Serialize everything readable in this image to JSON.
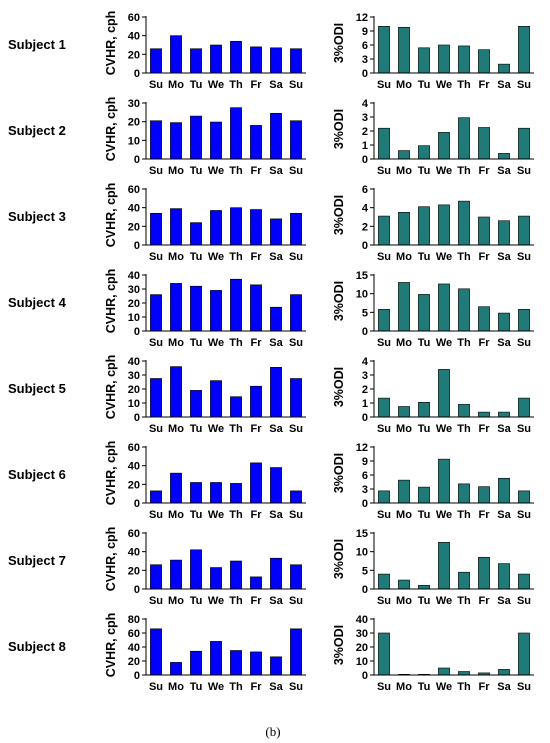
{
  "caption": "(b)",
  "colors": {
    "cvhr_bar": "#0000ff",
    "odi_bar": "#1f7a78",
    "bar_edge": "#000000",
    "axis": "#000000"
  },
  "chart_data": [
    {
      "type": "bar",
      "panel": "cvhr",
      "subject": "Subject 1",
      "ylabel": "CVHR, cph",
      "categories": [
        "Su",
        "Mo",
        "Tu",
        "We",
        "Th",
        "Fr",
        "Sa",
        "Su"
      ],
      "values": [
        26,
        40,
        26,
        30,
        34,
        28,
        27,
        26
      ],
      "ylim": [
        0,
        60
      ],
      "yticks": [
        0,
        20,
        40,
        60
      ],
      "grid": false
    },
    {
      "type": "bar",
      "panel": "odi",
      "subject": "Subject 1",
      "ylabel": "3%ODI",
      "categories": [
        "Su",
        "Mo",
        "Tu",
        "We",
        "Th",
        "Fr",
        "Sa",
        "Su"
      ],
      "values": [
        10,
        9.8,
        5.4,
        6,
        5.8,
        5,
        1.9,
        10
      ],
      "ylim": [
        0,
        12
      ],
      "yticks": [
        0,
        3,
        6,
        9,
        12
      ],
      "grid": false
    },
    {
      "type": "bar",
      "panel": "cvhr",
      "subject": "Subject 2",
      "ylabel": "CVHR, cph",
      "categories": [
        "Su",
        "Mo",
        "Tu",
        "We",
        "Th",
        "Fr",
        "Sa",
        "Su"
      ],
      "values": [
        20.5,
        19.5,
        23,
        19.8,
        27.5,
        18,
        24.5,
        20.5
      ],
      "ylim": [
        0,
        30
      ],
      "yticks": [
        0,
        10,
        20,
        30
      ],
      "grid": false
    },
    {
      "type": "bar",
      "panel": "odi",
      "subject": "Subject 2",
      "ylabel": "3%ODI",
      "categories": [
        "Su",
        "Mo",
        "Tu",
        "We",
        "Th",
        "Fr",
        "Sa",
        "Su"
      ],
      "values": [
        2.2,
        0.6,
        0.95,
        1.9,
        2.95,
        2.25,
        0.4,
        2.2
      ],
      "ylim": [
        0,
        4
      ],
      "yticks": [
        0,
        1,
        2,
        3,
        4
      ],
      "grid": false
    },
    {
      "type": "bar",
      "panel": "cvhr",
      "subject": "Subject 3",
      "ylabel": "CVHR, cph",
      "categories": [
        "Su",
        "Mo",
        "Tu",
        "We",
        "Th",
        "Fr",
        "Sa",
        "Su"
      ],
      "values": [
        34,
        39,
        24,
        37,
        40,
        38,
        28,
        34
      ],
      "ylim": [
        0,
        60
      ],
      "yticks": [
        0,
        20,
        40,
        60
      ],
      "grid": false
    },
    {
      "type": "bar",
      "panel": "odi",
      "subject": "Subject 3",
      "ylabel": "3%ODI",
      "categories": [
        "Su",
        "Mo",
        "Tu",
        "We",
        "Th",
        "Fr",
        "Sa",
        "Su"
      ],
      "values": [
        3.1,
        3.5,
        4.1,
        4.3,
        4.7,
        3,
        2.6,
        3.1
      ],
      "ylim": [
        0,
        6
      ],
      "yticks": [
        0,
        2,
        4,
        6
      ],
      "grid": false
    },
    {
      "type": "bar",
      "panel": "cvhr",
      "subject": "Subject 4",
      "ylabel": "CVHR, cph",
      "categories": [
        "Su",
        "Mo",
        "Tu",
        "We",
        "Th",
        "Fr",
        "Sa",
        "Su"
      ],
      "values": [
        26,
        34,
        32,
        29,
        37,
        33,
        17,
        26
      ],
      "ylim": [
        0,
        40
      ],
      "yticks": [
        0,
        10,
        20,
        30,
        40
      ],
      "grid": false
    },
    {
      "type": "bar",
      "panel": "odi",
      "subject": "Subject 4",
      "ylabel": "3%ODI",
      "categories": [
        "Su",
        "Mo",
        "Tu",
        "We",
        "Th",
        "Fr",
        "Sa",
        "Su"
      ],
      "values": [
        5.8,
        13,
        9.8,
        12.6,
        11.3,
        6.5,
        4.8,
        5.8
      ],
      "ylim": [
        0,
        15
      ],
      "yticks": [
        0,
        5,
        10,
        15
      ],
      "grid": false
    },
    {
      "type": "bar",
      "panel": "cvhr",
      "subject": "Subject 5",
      "ylabel": "CVHR, cph",
      "categories": [
        "Su",
        "Mo",
        "Tu",
        "We",
        "Th",
        "Fr",
        "Sa",
        "Su"
      ],
      "values": [
        27.5,
        36,
        19,
        26,
        14.5,
        22,
        35.5,
        27.5
      ],
      "ylim": [
        0,
        40
      ],
      "yticks": [
        0,
        10,
        20,
        30,
        40
      ],
      "grid": false
    },
    {
      "type": "bar",
      "panel": "odi",
      "subject": "Subject 5",
      "ylabel": "3%ODI",
      "categories": [
        "Su",
        "Mo",
        "Tu",
        "We",
        "Th",
        "Fr",
        "Sa",
        "Su"
      ],
      "values": [
        1.35,
        0.75,
        1.05,
        3.4,
        0.9,
        0.35,
        0.35,
        1.35
      ],
      "ylim": [
        0,
        4
      ],
      "yticks": [
        0,
        1,
        2,
        3,
        4
      ],
      "grid": false
    },
    {
      "type": "bar",
      "panel": "cvhr",
      "subject": "Subject 6",
      "ylabel": "CVHR, cph",
      "categories": [
        "Su",
        "Mo",
        "Tu",
        "We",
        "Th",
        "Fr",
        "Sa",
        "Su"
      ],
      "values": [
        13,
        32,
        22,
        22,
        21,
        43,
        38,
        13
      ],
      "ylim": [
        0,
        60
      ],
      "yticks": [
        0,
        20,
        40,
        60
      ],
      "grid": false
    },
    {
      "type": "bar",
      "panel": "odi",
      "subject": "Subject 6",
      "ylabel": "3%ODI",
      "categories": [
        "Su",
        "Mo",
        "Tu",
        "We",
        "Th",
        "Fr",
        "Sa",
        "Su"
      ],
      "values": [
        2.6,
        4.9,
        3.4,
        9.4,
        4.1,
        3.5,
        5.3,
        2.6
      ],
      "ylim": [
        0,
        12
      ],
      "yticks": [
        0,
        3,
        6,
        9,
        12
      ],
      "grid": false
    },
    {
      "type": "bar",
      "panel": "cvhr",
      "subject": "Subject 7",
      "ylabel": "CVHR, cph",
      "categories": [
        "Su",
        "Mo",
        "Tu",
        "We",
        "Th",
        "Fr",
        "Sa",
        "Su"
      ],
      "values": [
        26,
        31,
        42,
        23,
        30,
        13,
        33,
        26
      ],
      "ylim": [
        0,
        60
      ],
      "yticks": [
        0,
        20,
        40,
        60
      ],
      "grid": false
    },
    {
      "type": "bar",
      "panel": "odi",
      "subject": "Subject 7",
      "ylabel": "3%ODI",
      "categories": [
        "Su",
        "Mo",
        "Tu",
        "We",
        "Th",
        "Fr",
        "Sa",
        "Su"
      ],
      "values": [
        4,
        2.4,
        1,
        12.5,
        4.5,
        8.5,
        6.8,
        4
      ],
      "ylim": [
        0,
        15
      ],
      "yticks": [
        0,
        5,
        10,
        15
      ],
      "grid": false
    },
    {
      "type": "bar",
      "panel": "cvhr",
      "subject": "Subject 8",
      "ylabel": "CVHR, cph",
      "categories": [
        "Su",
        "Mo",
        "Tu",
        "We",
        "Th",
        "Fr",
        "Sa",
        "Su"
      ],
      "values": [
        66,
        18,
        34,
        48,
        35,
        33,
        26,
        66
      ],
      "ylim": [
        0,
        80
      ],
      "yticks": [
        0,
        20,
        40,
        60,
        80
      ],
      "grid": false
    },
    {
      "type": "bar",
      "panel": "odi",
      "subject": "Subject 8",
      "ylabel": "3%ODI",
      "categories": [
        "Su",
        "Mo",
        "Tu",
        "We",
        "Th",
        "Fr",
        "Sa",
        "Su"
      ],
      "values": [
        30,
        0.5,
        0.5,
        5,
        2.5,
        1.5,
        4,
        30
      ],
      "ylim": [
        0,
        40
      ],
      "yticks": [
        0,
        10,
        20,
        30,
        40
      ],
      "grid": false
    }
  ]
}
